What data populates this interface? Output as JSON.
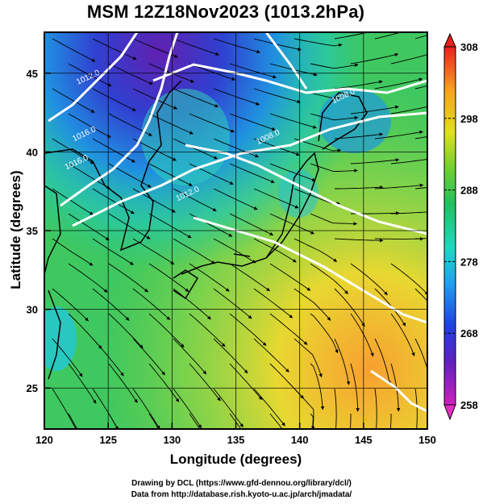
{
  "title": "MSM 12Z18Nov2023 (1013.2hPa)",
  "xlabel": "Longitude (degrees)",
  "ylabel": "Latitude  (degrees)",
  "credit_line1": "Drawing by DCL (https://www.gfd-dennou.org/library/dcl/)",
  "credit_line2": "Data from http://database.rish.kyoto-u.ac.jp/arch/jmadata/",
  "colors": {
    "land_outline": "#000000",
    "contour": "#ffffff",
    "streamline": "#000000"
  },
  "chart_data": {
    "type": "heatmap",
    "xlim": [
      120,
      150
    ],
    "ylim": [
      22.4,
      47.6
    ],
    "xticks": [
      120,
      125,
      130,
      135,
      140,
      145,
      150
    ],
    "yticks": [
      25,
      30,
      35,
      40,
      45
    ],
    "grid": true,
    "colorbar": {
      "min": 258,
      "max": 308,
      "ticks": [
        258,
        268,
        278,
        288,
        298,
        308
      ],
      "placement": "right"
    },
    "contour_labels": [
      {
        "text": "1012.0",
        "lon": 123.5,
        "lat": 44.6
      },
      {
        "text": "1016.0",
        "lon": 123.2,
        "lat": 41.0
      },
      {
        "text": "1016.0",
        "lon": 122.6,
        "lat": 39.2
      },
      {
        "text": "1012.0",
        "lon": 131.3,
        "lat": 37.2
      },
      {
        "text": "1008.0",
        "lon": 137.6,
        "lat": 40.8
      },
      {
        "text": "1008.0",
        "lon": 143.5,
        "lat": 43.4
      }
    ]
  }
}
